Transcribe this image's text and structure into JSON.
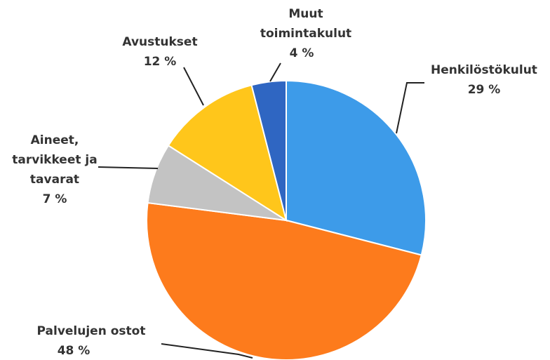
{
  "chart_data": {
    "type": "pie",
    "categories": [
      [
        "Henkilöstökulut"
      ],
      [
        "Palvelujen ostot"
      ],
      [
        "Aineet,",
        "tarvikkeet ja",
        "tavarat"
      ],
      [
        "Avustukset"
      ],
      [
        "Muut",
        "toimintakulut"
      ]
    ],
    "values": [
      29,
      48,
      7,
      12,
      4
    ],
    "value_labels": [
      "29 %",
      "48 %",
      "7 %",
      "12 %",
      "4 %"
    ],
    "colors": [
      "#3d9be9",
      "#fd7b1c",
      "#c3c3c3",
      "#ffc61b",
      "#2f66c2"
    ]
  }
}
